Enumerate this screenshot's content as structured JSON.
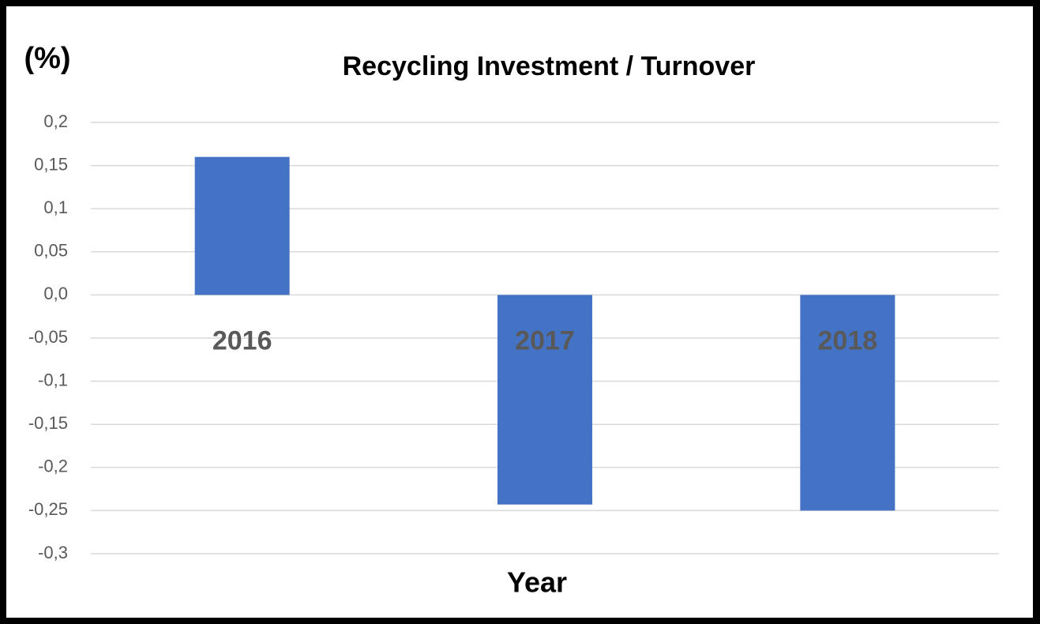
{
  "chart_data": {
    "type": "bar",
    "title": "Recycling Investment / Turnover",
    "y_label": "(%)",
    "x_label": "Year",
    "categories": [
      "2016",
      "2017",
      "2018"
    ],
    "values": [
      0.16,
      -0.243,
      -0.25
    ],
    "color": "#4472c4",
    "ylim": [
      -0.3,
      0.2
    ],
    "yticks": [
      {
        "value": 0.2,
        "label": "0,2"
      },
      {
        "value": 0.15,
        "label": "0,15"
      },
      {
        "value": 0.1,
        "label": "0,1"
      },
      {
        "value": 0.05,
        "label": "0,05"
      },
      {
        "value": 0,
        "label": "0,0"
      },
      {
        "value": -0.05,
        "label": "-0,05"
      },
      {
        "value": -0.1,
        "label": "-0,1"
      },
      {
        "value": -0.15,
        "label": "-0,15"
      },
      {
        "value": -0.2,
        "label": "-0,2"
      },
      {
        "value": -0.25,
        "label": "-0,25"
      },
      {
        "value": -0.3,
        "label": "-0,3"
      }
    ],
    "grid": true
  }
}
